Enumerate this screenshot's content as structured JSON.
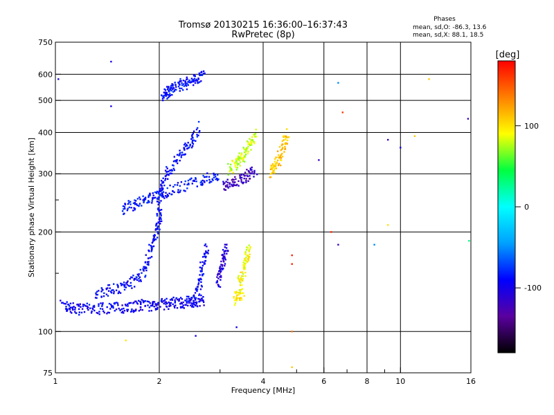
{
  "chart_data": {
    "type": "scatter",
    "title": "Tromsø 20130215 16:36:00–16:37:43",
    "subtitle": "RwPretec (8p)",
    "xlabel": "Frequency [MHz]",
    "ylabel": "Stationary phase Virtual Height [km]",
    "x_scale": "log",
    "y_scale": "log",
    "xlim": [
      1,
      16
    ],
    "ylim": [
      75,
      750
    ],
    "x_ticks": [
      1,
      2,
      4,
      6,
      8,
      10,
      16
    ],
    "x_tick_labels": [
      "1",
      "2",
      "4",
      "6",
      "8",
      "10",
      "16"
    ],
    "y_ticks": [
      75,
      100,
      200,
      300,
      400,
      500,
      600,
      750
    ],
    "y_tick_labels": [
      "75",
      "100",
      "200",
      "300",
      "400",
      "500",
      "600",
      "750"
    ],
    "x_minor_ticks": [
      3,
      5,
      7,
      9
    ],
    "y_minor_ticks": [
      150,
      250
    ],
    "grid": true,
    "phases_box": {
      "title": "Phases",
      "line_o": "mean, sd,O: -86.3, 13.6",
      "line_x": "mean, sd,X: 88.1, 18.5"
    },
    "colorbar": {
      "label": "[deg]",
      "range": [
        -180,
        180
      ],
      "ticks": [
        100,
        0,
        -100
      ],
      "tick_labels": [
        "100",
        "0",
        "-100"
      ],
      "colors": [
        "#000000",
        "#5a00a0",
        "#0000ff",
        "#00a0ff",
        "#00ffff",
        "#00ff40",
        "#ffff00",
        "#ff8000",
        "#ff0000"
      ]
    },
    "traces": [
      {
        "phase": -95,
        "points": [
          [
            1.05,
            120
          ],
          [
            1.1,
            118
          ],
          [
            1.15,
            117
          ],
          [
            1.2,
            117
          ],
          [
            1.3,
            117
          ],
          [
            1.4,
            118
          ],
          [
            1.5,
            118
          ],
          [
            1.6,
            119
          ],
          [
            1.7,
            119
          ],
          [
            1.8,
            120
          ],
          [
            1.9,
            120
          ],
          [
            2.0,
            121
          ],
          [
            2.1,
            121
          ],
          [
            2.2,
            122
          ],
          [
            2.3,
            122
          ],
          [
            2.4,
            123
          ],
          [
            2.5,
            123
          ],
          [
            2.6,
            124
          ],
          [
            2.7,
            124
          ]
        ]
      },
      {
        "phase": -90,
        "points": [
          [
            1.3,
            130
          ],
          [
            1.4,
            133
          ],
          [
            1.5,
            135
          ],
          [
            1.6,
            138
          ],
          [
            1.7,
            142
          ],
          [
            1.8,
            150
          ],
          [
            1.85,
            165
          ],
          [
            1.9,
            180
          ],
          [
            1.95,
            200
          ],
          [
            2.0,
            215
          ],
          [
            2.0,
            235
          ],
          [
            2.0,
            260
          ],
          [
            2.05,
            280
          ],
          [
            2.1,
            300
          ],
          [
            2.2,
            320
          ],
          [
            2.3,
            340
          ],
          [
            2.4,
            360
          ],
          [
            2.5,
            380
          ],
          [
            2.6,
            420
          ]
        ]
      },
      {
        "phase": -85,
        "points": [
          [
            1.55,
            235
          ],
          [
            1.65,
            240
          ],
          [
            1.75,
            245
          ],
          [
            1.85,
            250
          ],
          [
            1.95,
            255
          ],
          [
            2.05,
            262
          ],
          [
            2.2,
            270
          ],
          [
            2.4,
            278
          ],
          [
            2.6,
            285
          ],
          [
            2.8,
            292
          ],
          [
            3.0,
            298
          ]
        ]
      },
      {
        "phase": -88,
        "points": [
          [
            2.05,
            515
          ],
          [
            2.1,
            525
          ],
          [
            2.15,
            535
          ],
          [
            2.2,
            545
          ],
          [
            2.3,
            555
          ],
          [
            2.4,
            565
          ],
          [
            2.5,
            575
          ],
          [
            2.6,
            585
          ],
          [
            2.7,
            595
          ]
        ]
      },
      {
        "phase": -92,
        "points": [
          [
            2.5,
            125
          ],
          [
            2.6,
            135
          ],
          [
            2.65,
            150
          ],
          [
            2.7,
            165
          ],
          [
            2.75,
            180
          ]
        ]
      },
      {
        "phase": -110,
        "points": [
          [
            2.95,
            140
          ],
          [
            3.0,
            150
          ],
          [
            3.05,
            160
          ],
          [
            3.1,
            170
          ],
          [
            3.15,
            185
          ]
        ]
      },
      {
        "phase": -120,
        "points": [
          [
            3.05,
            275
          ],
          [
            3.2,
            280
          ],
          [
            3.35,
            285
          ],
          [
            3.5,
            292
          ],
          [
            3.65,
            300
          ],
          [
            3.8,
            308
          ]
        ]
      },
      {
        "phase": 80,
        "points": [
          [
            3.2,
            310
          ],
          [
            3.3,
            320
          ],
          [
            3.4,
            330
          ],
          [
            3.5,
            340
          ],
          [
            3.6,
            355
          ],
          [
            3.7,
            375
          ],
          [
            3.8,
            400
          ]
        ]
      },
      {
        "phase": 90,
        "points": [
          [
            3.4,
            140
          ],
          [
            3.5,
            150
          ],
          [
            3.55,
            160
          ],
          [
            3.6,
            170
          ],
          [
            3.65,
            180
          ]
        ]
      },
      {
        "phase": 95,
        "points": [
          [
            3.3,
            125
          ],
          [
            3.4,
            128
          ],
          [
            3.5,
            131
          ]
        ]
      },
      {
        "phase": 110,
        "points": [
          [
            4.2,
            300
          ],
          [
            4.3,
            310
          ],
          [
            4.4,
            325
          ],
          [
            4.5,
            345
          ],
          [
            4.6,
            370
          ],
          [
            4.7,
            400
          ]
        ]
      }
    ],
    "scattered_points": [
      {
        "x": 1.45,
        "y": 655,
        "phase": -100
      },
      {
        "x": 1.45,
        "y": 480,
        "phase": -100
      },
      {
        "x": 2.55,
        "y": 97,
        "phase": -100
      },
      {
        "x": 1.6,
        "y": 94,
        "phase": 100
      },
      {
        "x": 3.35,
        "y": 103,
        "phase": -100
      },
      {
        "x": 4.85,
        "y": 170,
        "phase": 170
      },
      {
        "x": 4.85,
        "y": 160,
        "phase": 170
      },
      {
        "x": 4.85,
        "y": 100,
        "phase": 140
      },
      {
        "x": 4.85,
        "y": 78,
        "phase": 110
      },
      {
        "x": 5.8,
        "y": 330,
        "phase": -120
      },
      {
        "x": 6.3,
        "y": 200,
        "phase": 170
      },
      {
        "x": 6.6,
        "y": 183,
        "phase": -120
      },
      {
        "x": 6.8,
        "y": 460,
        "phase": 160
      },
      {
        "x": 6.6,
        "y": 565,
        "phase": -50
      },
      {
        "x": 8.4,
        "y": 183,
        "phase": -50
      },
      {
        "x": 9.2,
        "y": 210,
        "phase": 100
      },
      {
        "x": 9.2,
        "y": 380,
        "phase": -120
      },
      {
        "x": 10.0,
        "y": 360,
        "phase": -100
      },
      {
        "x": 11.0,
        "y": 390,
        "phase": 110
      },
      {
        "x": 12.1,
        "y": 580,
        "phase": 110
      },
      {
        "x": 15.7,
        "y": 440,
        "phase": -120
      },
      {
        "x": 15.8,
        "y": 188,
        "phase": 30
      },
      {
        "x": 1.02,
        "y": 580,
        "phase": -100
      }
    ]
  }
}
